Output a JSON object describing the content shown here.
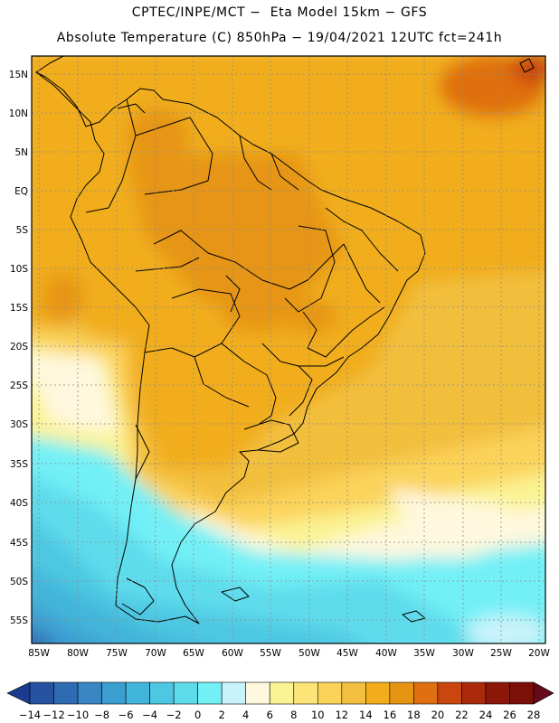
{
  "header": {
    "line1": "CPTEC/INPE/MCT −  Eta Model 15km − GFS",
    "line2": "Absolute Temperature (C) 850hPa − 19/04/2021 12UTC fct=241h"
  },
  "map": {
    "lat_labels": [
      "15N",
      "10N",
      "5N",
      "EQ",
      "5S",
      "10S",
      "15S",
      "20S",
      "25S",
      "30S",
      "35S",
      "40S",
      "45S",
      "50S",
      "55S"
    ],
    "lon_labels": [
      "85W",
      "80W",
      "75W",
      "70W",
      "65W",
      "60W",
      "55W",
      "50W",
      "45W",
      "40W",
      "35W",
      "30W",
      "25W",
      "20W"
    ],
    "gridlines": "dotted"
  },
  "colorbar": {
    "ticks": [
      "−14",
      "−12",
      "−10",
      "−8",
      "−6",
      "−4",
      "−2",
      "0",
      "2",
      "4",
      "6",
      "8",
      "10",
      "12",
      "14",
      "16",
      "18",
      "20",
      "22",
      "24",
      "26",
      "28"
    ],
    "colors": [
      "#1a3b8f",
      "#2553a0",
      "#2f6bb3",
      "#3a86c5",
      "#3c9fd2",
      "#42b5da",
      "#4ec8e2",
      "#5fdcec",
      "#72f0f6",
      "#c9f3fb",
      "#fef8de",
      "#fbf393",
      "#fde478",
      "#fbd35a",
      "#f2bf3e",
      "#f1ad1c",
      "#e69512",
      "#df6f10",
      "#c9470f",
      "#aa2a0b",
      "#8c1607",
      "#7a1008",
      "#650a1a"
    ]
  }
}
